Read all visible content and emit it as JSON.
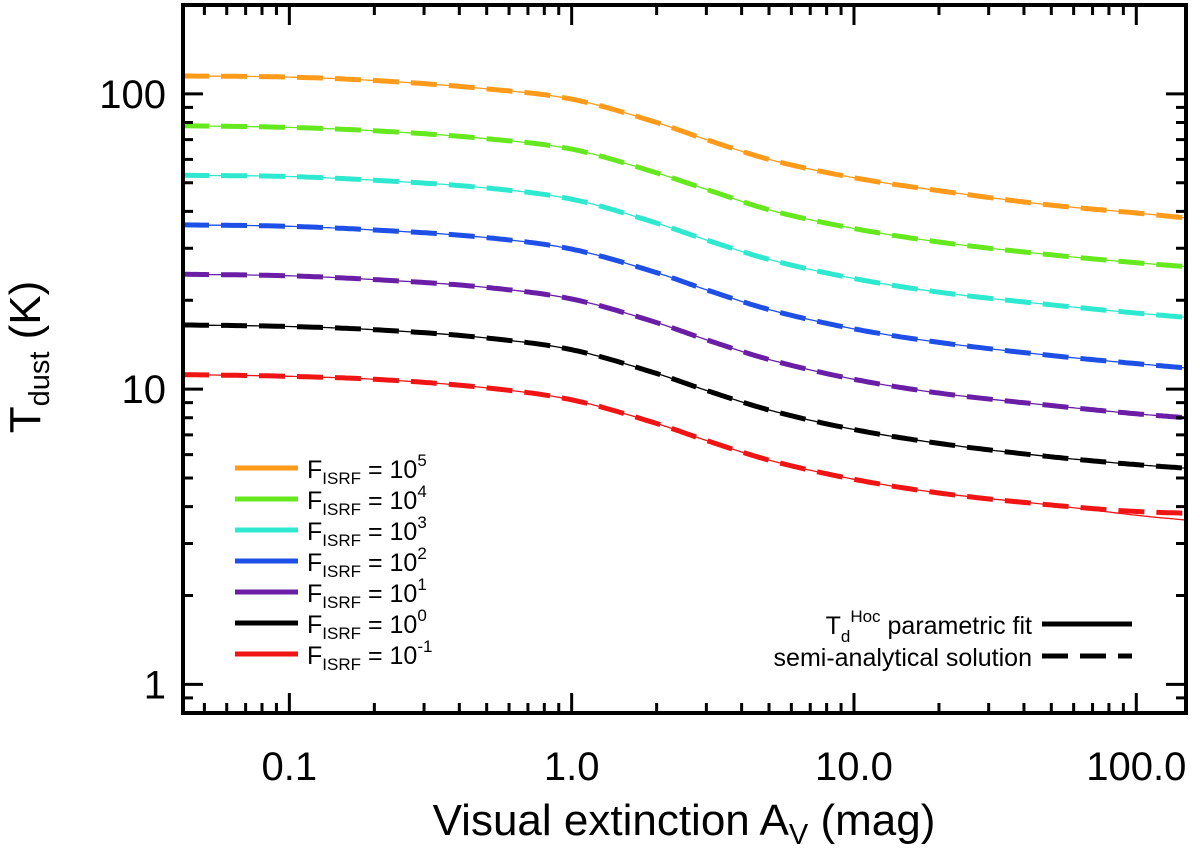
{
  "chart_data": {
    "type": "line",
    "xscale": "log",
    "yscale": "log",
    "xlim": [
      0.042,
      150
    ],
    "ylim": [
      0.8,
      200
    ],
    "x_ticks": [
      {
        "value": 0.1,
        "label": "0.1"
      },
      {
        "value": 1,
        "label": "1.0"
      },
      {
        "value": 10,
        "label": "10.0"
      },
      {
        "value": 100,
        "label": "100.0"
      }
    ],
    "y_ticks": [
      {
        "value": 1,
        "label": "1"
      },
      {
        "value": 10,
        "label": "10"
      },
      {
        "value": 100,
        "label": "100"
      }
    ],
    "xlabel": {
      "main": "Visual extinction A",
      "sub": "V",
      "unit": " (mag)"
    },
    "ylabel": {
      "main": "T",
      "sub": "dust",
      "unit": " (K)"
    },
    "x": [
      0.042,
      0.1,
      0.2,
      0.5,
      1,
      2,
      3,
      5,
      10,
      20,
      50,
      100,
      150
    ],
    "series": [
      {
        "name": "F",
        "sub": "ISRF",
        "mid": " = 10",
        "sup": "5",
        "color": "#ff9a1a",
        "values": [
          115,
          114,
          111,
          104,
          96,
          80,
          70,
          60,
          52,
          47,
          42,
          39.5,
          38
        ]
      },
      {
        "name": "F",
        "sub": "ISRF",
        "mid": " = 10",
        "sup": "4",
        "color": "#66e81f",
        "values": [
          78,
          77,
          75,
          70.5,
          65,
          54,
          47.5,
          40.5,
          35,
          31.5,
          28.5,
          26.8,
          26
        ]
      },
      {
        "name": "F",
        "sub": "ISRF",
        "mid": " = 10",
        "sup": "3",
        "color": "#2ee8d0",
        "values": [
          53,
          52.5,
          51,
          48,
          44,
          36.5,
          32,
          27.5,
          23.7,
          21.3,
          19.3,
          18.1,
          17.5
        ]
      },
      {
        "name": "F",
        "sub": "ISRF",
        "mid": " = 10",
        "sup": "2",
        "color": "#1e4fe6",
        "values": [
          36,
          35.6,
          34.6,
          32.6,
          29.8,
          24.8,
          21.7,
          18.6,
          16,
          14.4,
          13,
          12.2,
          11.8
        ]
      },
      {
        "name": "F",
        "sub": "ISRF",
        "mid": " = 10",
        "sup": "1",
        "color": "#6a1ea6",
        "values": [
          24.5,
          24.2,
          23.5,
          22.1,
          20.2,
          16.8,
          14.7,
          12.6,
          10.8,
          9.7,
          8.8,
          8.25,
          8
        ]
      },
      {
        "name": "F",
        "sub": "ISRF",
        "mid": " = 10",
        "sup": "0",
        "color": "#000000",
        "values": [
          16.5,
          16.3,
          15.9,
          14.9,
          13.6,
          11.3,
          9.9,
          8.5,
          7.3,
          6.55,
          5.9,
          5.55,
          5.4
        ]
      },
      {
        "name": "F",
        "sub": "ISRF",
        "mid": " = 10",
        "sup": "-1",
        "color": "#f01414",
        "values": [
          11.2,
          11.05,
          10.8,
          10.1,
          9.2,
          7.65,
          6.7,
          5.75,
          4.95,
          4.45,
          4.05,
          3.85,
          3.8
        ]
      }
    ],
    "fit_deviation_last_point": [
      0,
      0,
      0,
      0,
      0,
      0,
      -0.2
    ],
    "style_legend": [
      {
        "main": "T",
        "sub": "d",
        "sup": "Hoc",
        "rest": " parametric fit",
        "style": "solid"
      },
      {
        "main": "semi-analytical solution",
        "style": "dashed"
      }
    ],
    "legend_position": "bottom-left"
  }
}
